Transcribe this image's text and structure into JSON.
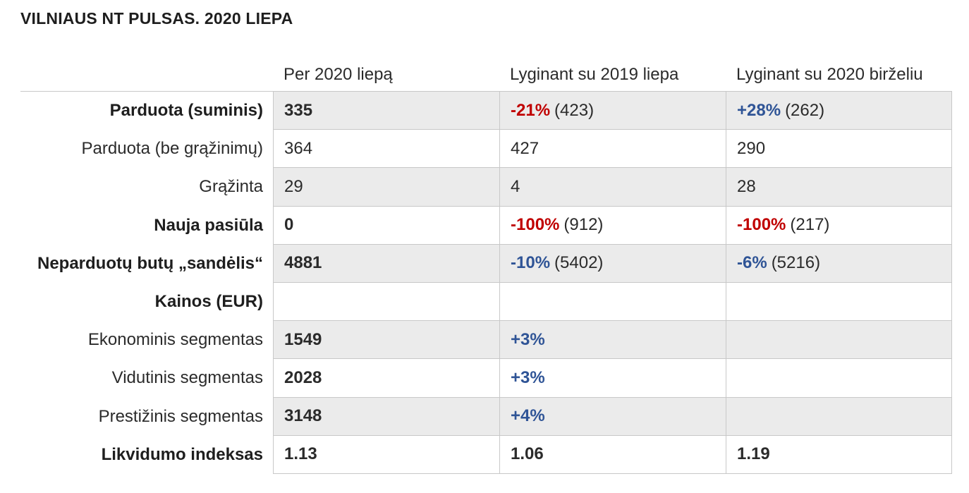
{
  "title": "VILNIAUS NT PULSAS. 2020 LIEPA",
  "columns": [
    "Per 2020 liepą",
    "Lyginant su 2019 liepa",
    "Lyginant su 2020 birželiu"
  ],
  "colors": {
    "negative": "#c00000",
    "positive": "#2f5496",
    "shade": "#ebebeb",
    "border": "#c8c8c8"
  },
  "rows": [
    {
      "label": "Parduota (suminis)",
      "label_bold": true,
      "shaded": true,
      "cells": [
        {
          "value": "335",
          "bold": true
        },
        {
          "pct": "-21%",
          "pct_tone": "neg",
          "value": "(423)"
        },
        {
          "pct": "+28%",
          "pct_tone": "pos",
          "value": "(262)"
        }
      ]
    },
    {
      "label": "Parduota (be grąžinimų)",
      "label_bold": false,
      "shaded": false,
      "cells": [
        {
          "value": "364"
        },
        {
          "value": "427"
        },
        {
          "value": "290"
        }
      ]
    },
    {
      "label": "Grąžinta",
      "label_bold": false,
      "shaded": true,
      "cells": [
        {
          "value": "29"
        },
        {
          "value": "4"
        },
        {
          "value": "28"
        }
      ]
    },
    {
      "label": "Nauja pasiūla",
      "label_bold": true,
      "shaded": false,
      "cells": [
        {
          "value": "0",
          "bold": true
        },
        {
          "pct": "-100%",
          "pct_tone": "neg",
          "value": "(912)"
        },
        {
          "pct": "-100%",
          "pct_tone": "neg",
          "value": "(217)"
        }
      ]
    },
    {
      "label": "Neparduotų butų „sandėlis“",
      "label_bold": true,
      "shaded": true,
      "cells": [
        {
          "value": "4881",
          "bold": true
        },
        {
          "pct": "-10%",
          "pct_tone": "pos",
          "value": "(5402)"
        },
        {
          "pct": "-6%",
          "pct_tone": "pos",
          "value": "(5216)"
        }
      ]
    },
    {
      "label": "Kainos (EUR)",
      "label_bold": true,
      "shaded": false,
      "cells": [
        {
          "value": ""
        },
        {
          "value": ""
        },
        {
          "value": ""
        }
      ]
    },
    {
      "label": "Ekonominis segmentas",
      "label_bold": false,
      "shaded": true,
      "cells": [
        {
          "value": "1549",
          "bold": true
        },
        {
          "pct": "+3%",
          "pct_tone": "pos",
          "value": ""
        },
        {
          "value": ""
        }
      ]
    },
    {
      "label": "Vidutinis segmentas",
      "label_bold": false,
      "shaded": false,
      "cells": [
        {
          "value": "2028",
          "bold": true
        },
        {
          "pct": "+3%",
          "pct_tone": "pos",
          "value": ""
        },
        {
          "value": ""
        }
      ]
    },
    {
      "label": "Prestižinis segmentas",
      "label_bold": false,
      "shaded": true,
      "cells": [
        {
          "value": "3148",
          "bold": true
        },
        {
          "pct": "+4%",
          "pct_tone": "pos",
          "value": ""
        },
        {
          "value": ""
        }
      ]
    },
    {
      "label": "Likvidumo indeksas",
      "label_bold": true,
      "shaded": false,
      "cells": [
        {
          "value": "1.13",
          "bold": true
        },
        {
          "value": "1.06",
          "bold": true
        },
        {
          "value": "1.19",
          "bold": true
        }
      ]
    }
  ]
}
